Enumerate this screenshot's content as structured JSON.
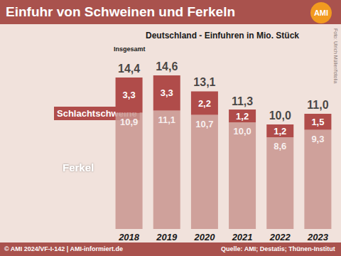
{
  "chart_data": {
    "type": "bar",
    "title": "Einfuhr von Schweinen und Ferkeln",
    "subtitle": "Deutschland - Einfuhren in Mio. Stück",
    "logo": "AMI",
    "total_name": "Insgesamt",
    "categories": [
      "2018",
      "2019",
      "2020",
      "2021",
      "2022",
      "2023"
    ],
    "series": [
      {
        "name": "Ferkel",
        "color": "#c9958f",
        "values": [
          10.9,
          11.1,
          10.7,
          10.0,
          8.6,
          9.3
        ],
        "value_labels": [
          "10,9",
          "11,1",
          "10,7",
          "10,0",
          "8,6",
          "9,3"
        ]
      },
      {
        "name": "Schlachtschweine",
        "color": "#b04c4a",
        "values": [
          3.3,
          3.3,
          2.2,
          1.2,
          1.2,
          1.5
        ],
        "value_labels": [
          "3,3",
          "3,3",
          "2,2",
          "1,2",
          "1,2",
          "1,5"
        ]
      }
    ],
    "totals": [
      14.4,
      14.6,
      13.1,
      11.3,
      10.0,
      11.0
    ],
    "total_labels": [
      "14,4",
      "14,6",
      "13,1",
      "11,3",
      "10,0",
      "11,0"
    ],
    "stacked": true,
    "data_labels": true,
    "tick_labels": "x",
    "grid": false,
    "ylim": [
      0,
      16
    ],
    "footer": "© AMI 2024/VF-I-142 | AMI-informiert.de",
    "source": "Quelle: AMI; Destatis; Thünen-Institut",
    "photo_credit": "Foto: Ulrich Müller/fotolia"
  }
}
